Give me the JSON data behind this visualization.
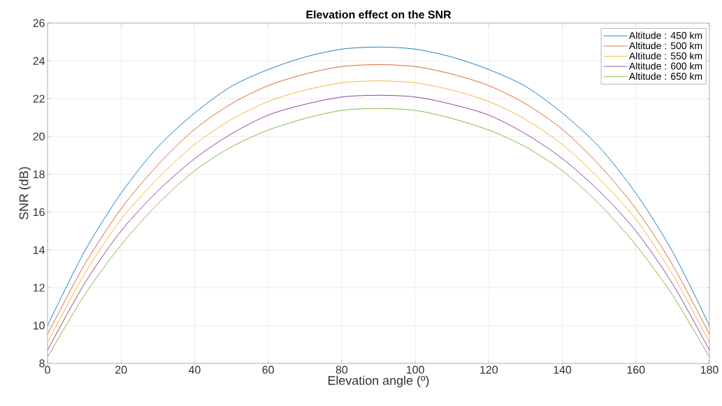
{
  "chart_data": {
    "type": "line",
    "title": "Elevation effect on the SNR",
    "xlabel": "Elevation angle (º)",
    "ylabel": "SNR (dB)",
    "x": [
      0,
      10,
      20,
      30,
      40,
      50,
      60,
      70,
      80,
      90,
      100,
      110,
      120,
      130,
      140,
      150,
      160,
      170,
      180
    ],
    "series": [
      {
        "name": "Altitude : 450 km",
        "color": "#0072bd",
        "values": [
          10.0,
          13.9,
          17.0,
          19.45,
          21.24,
          22.65,
          23.54,
          24.2,
          24.62,
          24.73,
          24.62,
          24.2,
          23.54,
          22.65,
          21.24,
          19.45,
          17.0,
          13.9,
          10.0
        ]
      },
      {
        "name": "Altitude : 500 km",
        "color": "#d95319",
        "values": [
          9.54,
          13.2,
          16.18,
          18.5,
          20.38,
          21.73,
          22.69,
          23.3,
          23.7,
          23.8,
          23.7,
          23.3,
          22.69,
          21.73,
          20.38,
          18.5,
          16.18,
          13.2,
          9.54
        ]
      },
      {
        "name": "Altitude : 550 km",
        "color": "#edb120",
        "values": [
          9.11,
          12.7,
          15.62,
          17.78,
          19.58,
          20.9,
          21.85,
          22.45,
          22.84,
          22.94,
          22.84,
          22.45,
          21.85,
          20.9,
          19.58,
          17.78,
          15.62,
          12.7,
          9.11
        ]
      },
      {
        "name": "Altitude : 600 km",
        "color": "#7e2f8e",
        "values": [
          8.7,
          12.2,
          15.0,
          17.12,
          18.83,
          20.14,
          21.13,
          21.7,
          22.09,
          22.18,
          22.09,
          21.7,
          21.13,
          20.14,
          18.83,
          17.12,
          15.0,
          12.2,
          8.7
        ]
      },
      {
        "name": "Altitude : 650 km",
        "color": "#77ac30",
        "values": [
          8.33,
          11.6,
          14.26,
          16.44,
          18.19,
          19.45,
          20.34,
          20.95,
          21.38,
          21.48,
          21.38,
          20.95,
          20.34,
          19.45,
          18.19,
          16.44,
          14.26,
          11.6,
          8.33
        ]
      }
    ],
    "xlim": [
      0,
      180
    ],
    "ylim": [
      8,
      26
    ],
    "xticks": [
      0,
      20,
      40,
      60,
      80,
      100,
      120,
      140,
      160,
      180
    ],
    "yticks": [
      8,
      10,
      12,
      14,
      16,
      18,
      20,
      22,
      24,
      26
    ],
    "grid": true,
    "legend": "top right",
    "marker": "none",
    "line_style": "solid"
  }
}
